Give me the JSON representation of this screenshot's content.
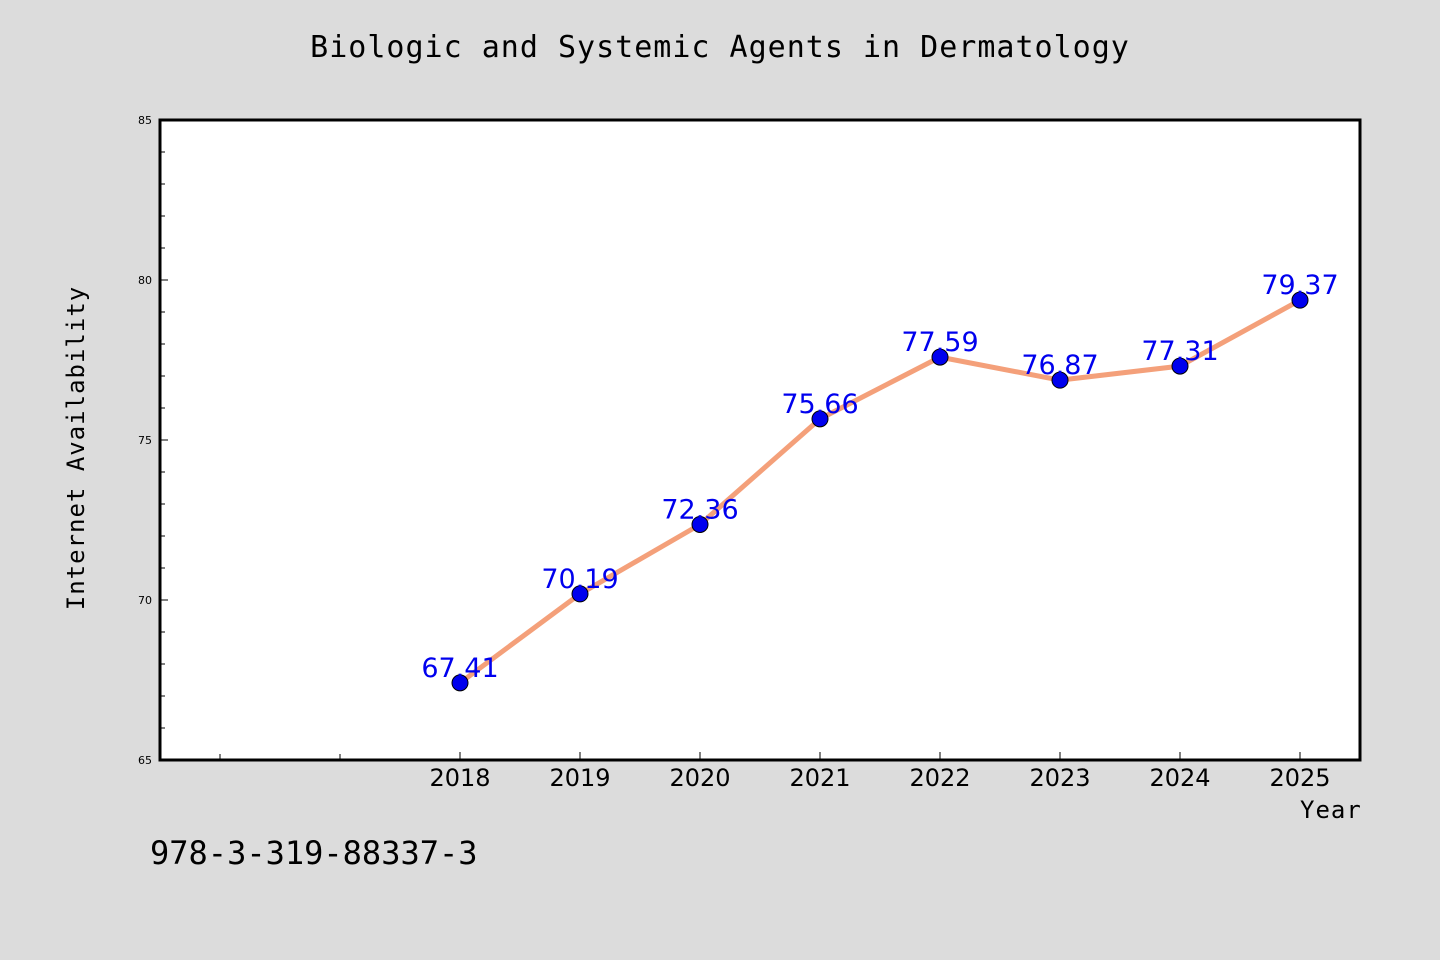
{
  "chart_data": {
    "type": "line",
    "title": "Biologic and Systemic Agents in Dermatology",
    "xlabel": "Year",
    "ylabel": "Internet Availability",
    "categories": [
      "2018",
      "2019",
      "2020",
      "2021",
      "2022",
      "2023",
      "2024",
      "2025"
    ],
    "series": [
      {
        "values": [
          67.41,
          70.19,
          72.36,
          75.66,
          77.59,
          76.87,
          77.31,
          79.37
        ],
        "line_color": "#f4a07a",
        "marker_color": "#0000ee",
        "label_color": "#0000ee"
      }
    ],
    "data_labels": [
      "67.41",
      "70.19",
      "72.36",
      "75.66",
      "77.59",
      "76.87",
      "77.31",
      "79.37"
    ],
    "ylim": [
      65,
      85
    ],
    "yticks": [
      "65",
      "70",
      "75",
      "80",
      "85"
    ],
    "grid": false,
    "legend": "none"
  },
  "footnote": "978-3-319-88337-3"
}
